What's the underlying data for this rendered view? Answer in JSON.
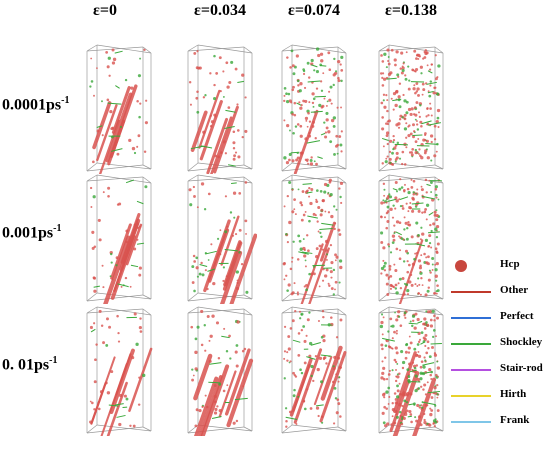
{
  "columns": [
    {
      "label": "ε=0"
    },
    {
      "label": "ε=0.034"
    },
    {
      "label": "ε=0.074"
    },
    {
      "label": "ε=0.138"
    }
  ],
  "rows": [
    {
      "rate": "0.0001ps",
      "exp": "-1"
    },
    {
      "rate": "0.001ps",
      "exp": "-1"
    },
    {
      "rate": "0. 01ps",
      "exp": "-1"
    }
  ],
  "legend": [
    {
      "label": "Hcp",
      "symbol": "dot",
      "color": "#c8473e"
    },
    {
      "label": "Other",
      "symbol": "line",
      "color": "#c0392b"
    },
    {
      "label": "Perfect",
      "symbol": "line",
      "color": "#2f6fd6"
    },
    {
      "label": "Shockley",
      "symbol": "line",
      "color": "#3aa83a"
    },
    {
      "label": "Stair-rod",
      "symbol": "line",
      "color": "#b44fe0"
    },
    {
      "label": "Hirth",
      "symbol": "line",
      "color": "#e8d22a"
    },
    {
      "label": "Frank",
      "symbol": "line",
      "color": "#7fc6e8"
    }
  ],
  "panels": [
    {
      "density": 0.15,
      "slabs": 1.0
    },
    {
      "density": 0.2,
      "slabs": 0.9
    },
    {
      "density": 0.55,
      "slabs": 0.2
    },
    {
      "density": 0.9,
      "slabs": 0.0
    },
    {
      "density": 0.15,
      "slabs": 1.0
    },
    {
      "density": 0.2,
      "slabs": 1.0
    },
    {
      "density": 0.5,
      "slabs": 0.4
    },
    {
      "density": 0.9,
      "slabs": 0.2
    },
    {
      "density": 0.15,
      "slabs": 1.0
    },
    {
      "density": 0.2,
      "slabs": 1.0
    },
    {
      "density": 0.35,
      "slabs": 0.9
    },
    {
      "density": 1.0,
      "slabs": 0.5
    }
  ]
}
